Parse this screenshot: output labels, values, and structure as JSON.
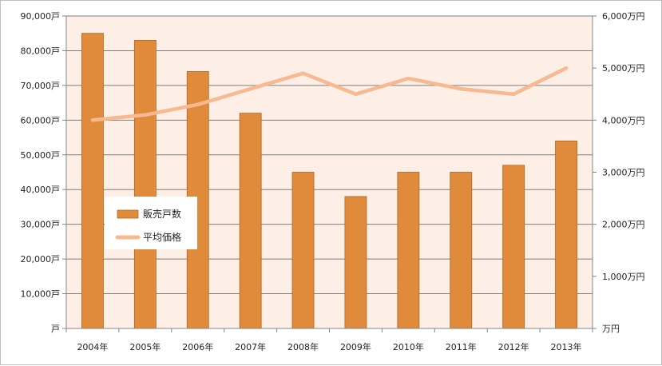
{
  "chart_data": {
    "type": "bar",
    "categories": [
      "2004年",
      "2005年",
      "2006年",
      "2007年",
      "2008年",
      "2009年",
      "2010年",
      "2011年",
      "2012年",
      "2013年"
    ],
    "series": [
      {
        "name": "販売戸数",
        "type": "bar",
        "axis": "left",
        "color": "#e08a3c",
        "values": [
          85000,
          83000,
          74000,
          62000,
          45000,
          38000,
          45000,
          45000,
          47000,
          54000
        ]
      },
      {
        "name": "平均価格",
        "type": "line",
        "axis": "right",
        "color": "#f8b991",
        "values": [
          4000,
          4100,
          4300,
          4600,
          4900,
          4500,
          4800,
          4600,
          4500,
          5000
        ]
      }
    ],
    "y_left": {
      "ylim": [
        0,
        90000
      ],
      "tick_labels": [
        "戸",
        "10,000戸",
        "20,000戸",
        "30,000戸",
        "40,000戸",
        "50,000戸",
        "60,000戸",
        "70,000戸",
        "80,000戸",
        "90,000戸"
      ]
    },
    "y_right": {
      "ylim": [
        0,
        6000
      ],
      "tick_labels": [
        "万円",
        "1,000万円",
        "2,000万円",
        "3,000万円",
        "4,000万円",
        "5,000万円",
        "6,000万円"
      ]
    },
    "grid": true,
    "legend_position": "center-left",
    "colors": {
      "plot_background": "#fdeee6",
      "gridline": "#7f7f7f",
      "bar_stroke": "#b5651d"
    }
  }
}
